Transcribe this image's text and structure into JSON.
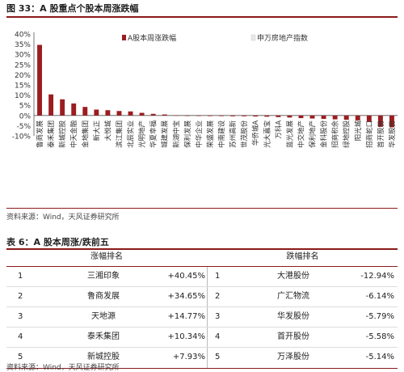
{
  "figure": {
    "title": "图 33：A 股重点个股本周涨跌幅",
    "source": "资料来源：Wind，天风证券研究所"
  },
  "chart_data": {
    "type": "bar",
    "series": [
      {
        "name": "A股本周涨跌幅",
        "color": "#9b1d20"
      },
      {
        "name": "申万房地产指数",
        "color": "#e8e8e8"
      }
    ],
    "categories": [
      "鲁商发展",
      "泰禾集团",
      "新城控股",
      "中天金融",
      "金地集团",
      "新大正",
      "大悦城",
      "滨江集团",
      "北辰实业",
      "光明地产",
      "华夏幸福",
      "城建发展",
      "新湖中宝",
      "保利发展",
      "中华企业",
      "荣盛发展",
      "中南建设",
      "苏州高新",
      "世茂股份",
      "华侨城A",
      "光大嘉宝",
      "万科A",
      "蓝光发展",
      "中交地产",
      "保利地产",
      "金科股份",
      "招商积余",
      "绿地控股",
      "阳光城",
      "招商蛇口",
      "首开股份",
      "华发股份"
    ],
    "values": [
      34.65,
      10.34,
      7.93,
      5.9,
      4.2,
      2.9,
      2.6,
      2.2,
      2.0,
      1.3,
      0.8,
      0.5,
      0.1,
      -0.2,
      -0.2,
      -0.3,
      -0.3,
      -0.4,
      -0.4,
      -0.5,
      -0.6,
      -0.8,
      -1.0,
      -1.3,
      -1.5,
      -1.7,
      -1.9,
      -2.1,
      -2.4,
      -3.2,
      -5.58,
      -5.79
    ],
    "yticks": [
      "40%",
      "35%",
      "30%",
      "25%",
      "20%",
      "15%",
      "10%",
      "5%",
      "0%",
      "-5%",
      "-10%"
    ],
    "ylim": [
      -10,
      40
    ],
    "legend": "top"
  },
  "table": {
    "title": "表 6：A 股本周涨/跌前五",
    "headers": {
      "gain": "涨幅排名",
      "loss": "跌幅排名"
    },
    "rows": [
      {
        "rank": "1",
        "gain_name": "三湘印象",
        "gain_pct": "+40.45%",
        "loss_rank": "1",
        "loss_name": "大港股份",
        "loss_pct": "-12.94%"
      },
      {
        "rank": "2",
        "gain_name": "鲁商发展",
        "gain_pct": "+34.65%",
        "loss_rank": "2",
        "loss_name": "广汇物流",
        "loss_pct": "-6.14%"
      },
      {
        "rank": "3",
        "gain_name": "天地源",
        "gain_pct": "+14.77%",
        "loss_rank": "3",
        "loss_name": "华发股份",
        "loss_pct": "-5.79%"
      },
      {
        "rank": "4",
        "gain_name": "泰禾集团",
        "gain_pct": "+10.34%",
        "loss_rank": "4",
        "loss_name": "首开股份",
        "loss_pct": "-5.58%"
      },
      {
        "rank": "5",
        "gain_name": "新城控股",
        "gain_pct": "+7.93%",
        "loss_rank": "5",
        "loss_name": "万泽股份",
        "loss_pct": "-5.14%"
      }
    ],
    "source": "资料来源：Wind，天风证券研究所"
  }
}
